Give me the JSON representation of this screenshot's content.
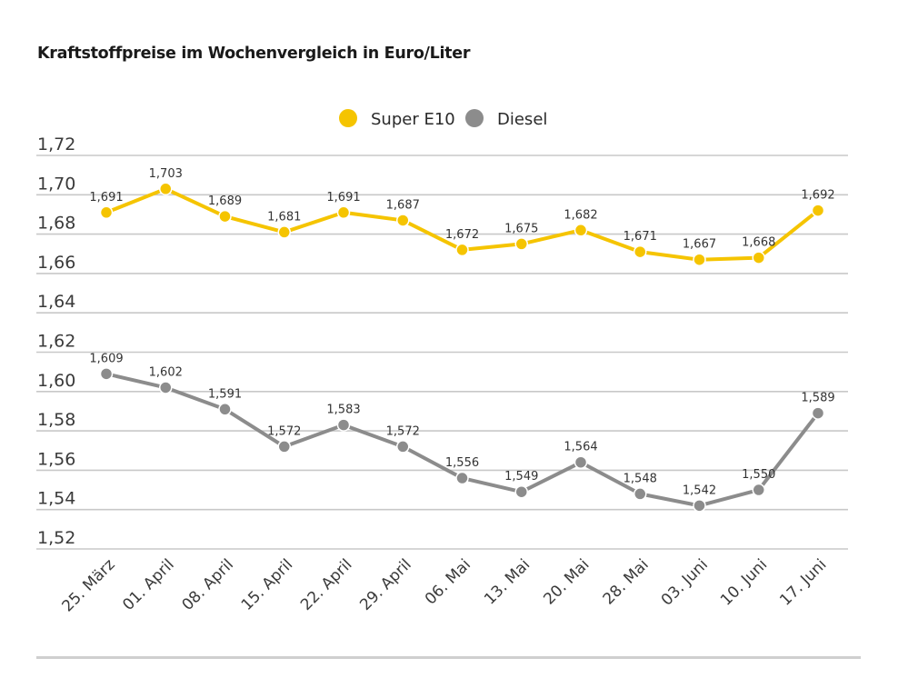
{
  "title": "Kraftstoffpreise im Wochenvergleich in Euro/Liter",
  "chart_data": {
    "type": "line",
    "title": "Kraftstoffpreise im Wochenvergleich in Euro/Liter",
    "xlabel": "",
    "ylabel": "",
    "categories": [
      "25. März",
      "01. April",
      "08. April",
      "15. April",
      "22. April",
      "29. April",
      "06. Mai",
      "13. Mai",
      "20. Mai",
      "28. Mai",
      "03. Juni",
      "10. Juni",
      "17. Juni"
    ],
    "series": [
      {
        "name": "Super E10",
        "color": "#f5c400",
        "values": [
          1.691,
          1.703,
          1.689,
          1.681,
          1.691,
          1.687,
          1.672,
          1.675,
          1.682,
          1.671,
          1.667,
          1.668,
          1.692
        ],
        "labels": [
          "1,691",
          "1,703",
          "1,689",
          "1,681",
          "1,691",
          "1,687",
          "1,672",
          "1,675",
          "1,682",
          "1,671",
          "1,667",
          "1,668",
          "1,692"
        ]
      },
      {
        "name": "Diesel",
        "color": "#8c8c8c",
        "values": [
          1.609,
          1.602,
          1.591,
          1.572,
          1.583,
          1.572,
          1.556,
          1.549,
          1.564,
          1.548,
          1.542,
          1.55,
          1.589
        ],
        "labels": [
          "1,609",
          "1,602",
          "1,591",
          "1,572",
          "1,583",
          "1,572",
          "1,556",
          "1,549",
          "1,564",
          "1,548",
          "1,542",
          "1,550",
          "1,589"
        ]
      }
    ],
    "yticks": [
      1.72,
      1.7,
      1.68,
      1.66,
      1.64,
      1.62,
      1.6,
      1.58,
      1.56,
      1.54,
      1.52
    ],
    "ytick_labels": [
      "1,72",
      "1,70",
      "1,68",
      "1,66",
      "1,64",
      "1,62",
      "1,60",
      "1,58",
      "1,56",
      "1,54",
      "1,52"
    ],
    "ylim": [
      1.52,
      1.72
    ],
    "grid": true,
    "legend_position": "top-center",
    "gridline_color": "#c8c8c8"
  }
}
